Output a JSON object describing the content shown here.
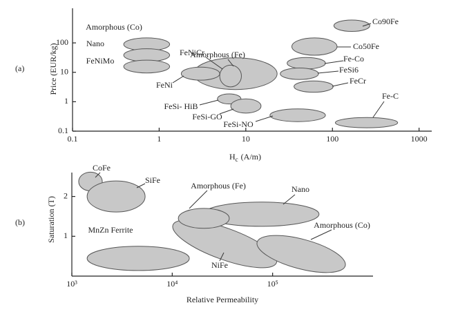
{
  "chart_data": [
    {
      "type": "ellipse",
      "panel_label": "(a)",
      "y_label": "Price (EUR/kg)",
      "x_label": {
        "text": "H",
        "subscript": "c",
        "unit": "(A/m)"
      },
      "xscale": "log",
      "yscale": "log",
      "xlim": [
        0.1,
        1400
      ],
      "ylim": [
        0.1,
        1500
      ],
      "xticks": [
        0.1,
        1,
        10,
        100,
        1000
      ],
      "yticks": [
        0.1,
        1,
        10,
        100
      ],
      "color": "#c8c8c8",
      "series": [
        {
          "name": "Amorphous (Fe)",
          "x": [
            2.5,
            23
          ],
          "y": [
            2.6,
            31
          ]
        },
        {
          "name": "FeNi",
          "x": [
            1.8,
            5.0
          ],
          "y": [
            5.4,
            15
          ]
        },
        {
          "name": "FeNiCr",
          "x": [
            5.0,
            8.9
          ],
          "y": [
            3.2,
            17.5
          ]
        },
        {
          "name": "Amorphous (Co)",
          "x": [
            0.39,
            1.32
          ],
          "y": [
            54,
            148
          ]
        },
        {
          "name": "Nano",
          "x": [
            0.39,
            1.32
          ],
          "y": [
            23,
            63
          ]
        },
        {
          "name": "FeNiMo",
          "x": [
            0.39,
            1.32
          ],
          "y": [
            9.5,
            26
          ]
        },
        {
          "name": "FeSi- HiB",
          "x": [
            4.7,
            8.8
          ],
          "y": [
            0.84,
            1.85
          ]
        },
        {
          "name": "FeSi-GO",
          "x": [
            6.7,
            15
          ],
          "y": [
            0.41,
            1.25
          ]
        },
        {
          "name": "FeSi-NO",
          "x": [
            19,
            83
          ],
          "y": [
            0.21,
            0.57
          ]
        },
        {
          "name": "Co90Fe",
          "x": [
            104,
            270
          ],
          "y": [
            245,
            600
          ]
        },
        {
          "name": "Co50Fe",
          "x": [
            34,
            113
          ],
          "y": [
            38,
            148
          ]
        },
        {
          "name": "Fe-Co",
          "x": [
            30,
            83
          ],
          "y": [
            13,
            32
          ]
        },
        {
          "name": "FeSi6",
          "x": [
            25,
            69
          ],
          "y": [
            5.7,
            14
          ]
        },
        {
          "name": "FeCr",
          "x": [
            36,
            102
          ],
          "y": [
            2.1,
            5.1
          ]
        },
        {
          "name": "Fe-C",
          "x": [
            108,
            566
          ],
          "y": [
            0.13,
            0.29
          ]
        }
      ]
    },
    {
      "type": "ellipse",
      "panel_label": "(b)",
      "y_label": "Saturation (T)",
      "x_label": {
        "text": "Relative Permeability"
      },
      "xscale": "log",
      "xlim": [
        1000,
        1000000
      ],
      "ylim": [
        0,
        2.6
      ],
      "xticks": [
        {
          "value": 1000,
          "label": "10³"
        },
        {
          "value": 10000,
          "label": "10⁴"
        },
        {
          "value": 100000,
          "label": "10⁵"
        }
      ],
      "yticks": [
        1,
        2
      ],
      "color": "#c8c8c8",
      "series": [
        {
          "name": "CoFe",
          "x": [
            1170,
            2010
          ],
          "y": [
            2.14,
            2.61
          ]
        },
        {
          "name": "SiFe",
          "x": [
            1420,
            5370
          ],
          "y": [
            1.61,
            2.39
          ]
        },
        {
          "name": "MnZn Ferrite",
          "x": [
            1420,
            14800
          ],
          "y": [
            0.14,
            0.75
          ]
        },
        {
          "name": "NiFe",
          "x": [
            10100,
            110000
          ],
          "y": [
            0.21,
            1.41
          ]
        },
        {
          "name": "Nano",
          "x": [
            20300,
            290000
          ],
          "y": [
            1.25,
            1.86
          ]
        },
        {
          "name": "Amorphous (Fe)",
          "x": [
            11500,
            37000
          ],
          "y": [
            1.2,
            1.7
          ]
        },
        {
          "name": "Amorphous (Co)",
          "x": [
            69800,
            531000
          ],
          "y": [
            0.09,
            1.02
          ]
        }
      ]
    }
  ]
}
